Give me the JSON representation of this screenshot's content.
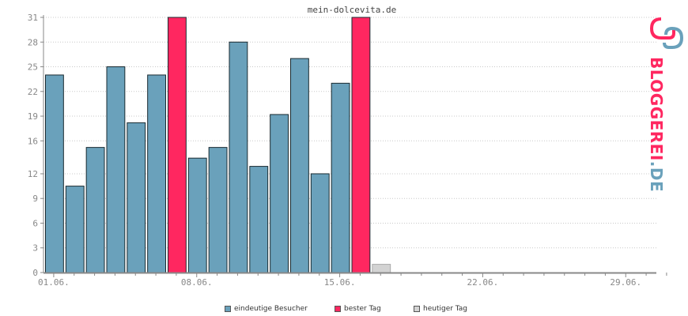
{
  "chart_data": {
    "type": "bar",
    "title": "mein-dolcevita.de",
    "y_ticks": [
      0,
      3,
      6,
      9,
      12,
      16,
      19,
      22,
      25,
      28,
      31
    ],
    "ylim": [
      0,
      31
    ],
    "x_tick_labels": [
      "01.06.",
      "08.06.",
      "15.06.",
      "22.06.",
      "29.06."
    ],
    "days_in_range": 30,
    "grid": true,
    "series": [
      {
        "name": "eindeutige Besucher",
        "values": [
          24,
          10.5,
          15.2,
          25,
          18.2,
          24,
          31,
          13.9,
          15.2,
          28,
          12.9,
          19.2,
          26,
          12,
          23,
          31,
          1
        ],
        "types": [
          "normal",
          "normal",
          "normal",
          "normal",
          "normal",
          "normal",
          "best",
          "normal",
          "normal",
          "normal",
          "normal",
          "normal",
          "normal",
          "normal",
          "normal",
          "best",
          "today"
        ]
      }
    ],
    "legend": [
      {
        "label": "eindeutige Besucher",
        "color": "#6aa1bb"
      },
      {
        "label": "bester Tag",
        "color": "#ff2760"
      },
      {
        "label": "heutiger Tag",
        "color": "#d3d3d3"
      }
    ],
    "colors": {
      "normal": "#6aa1bb",
      "best": "#ff2760",
      "today": "#d3d3d3",
      "axis": "#888888",
      "grid": "#c8c8c8",
      "text": "#888888"
    }
  },
  "logo": {
    "text": "BLOGGEREI.DE",
    "main": "BLOGGEREI",
    "suffix": ".DE"
  }
}
